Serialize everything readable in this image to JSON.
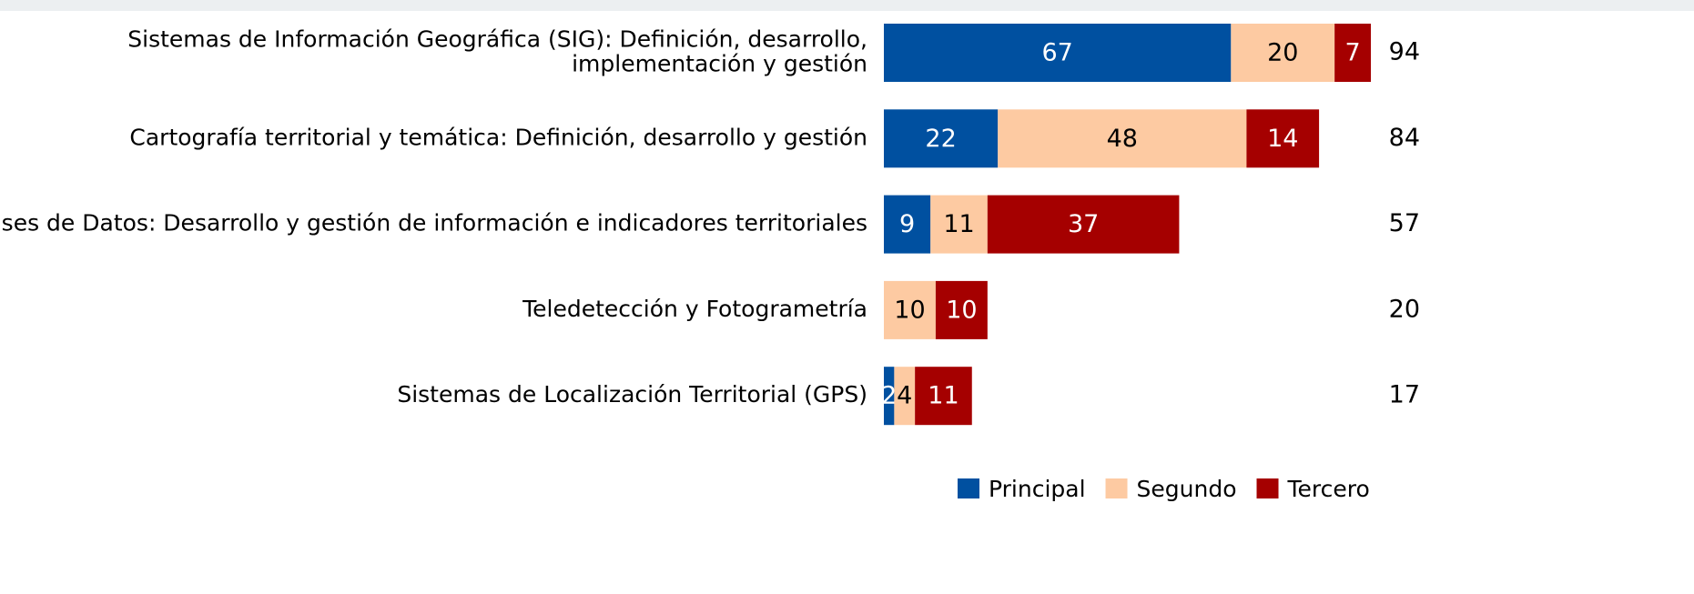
{
  "chart_data": {
    "type": "stacked-bar-horizontal",
    "categories": [
      "Sistemas de Información Geográfica (SIG): Definición, desarrollo,\nimplementación y gestión",
      "Cartografía territorial y temática: Definición, desarrollo y gestión",
      "Bases de Datos: Desarrollo y gestión de información e indicadores territoriales",
      "Teledetección y Fotogrametría",
      "Sistemas de Localización Territorial (GPS)"
    ],
    "series": [
      {
        "name": "Principal",
        "color": "#0050a0",
        "values": [
          67,
          22,
          9,
          0,
          2
        ]
      },
      {
        "name": "Segundo",
        "color": "#fdcaa2",
        "values": [
          20,
          48,
          11,
          10,
          4
        ]
      },
      {
        "name": "Tercero",
        "color": "#a50000",
        "values": [
          7,
          14,
          37,
          10,
          11
        ]
      }
    ],
    "totals": [
      94,
      84,
      57,
      20,
      17
    ],
    "legend": "bottom-right"
  }
}
